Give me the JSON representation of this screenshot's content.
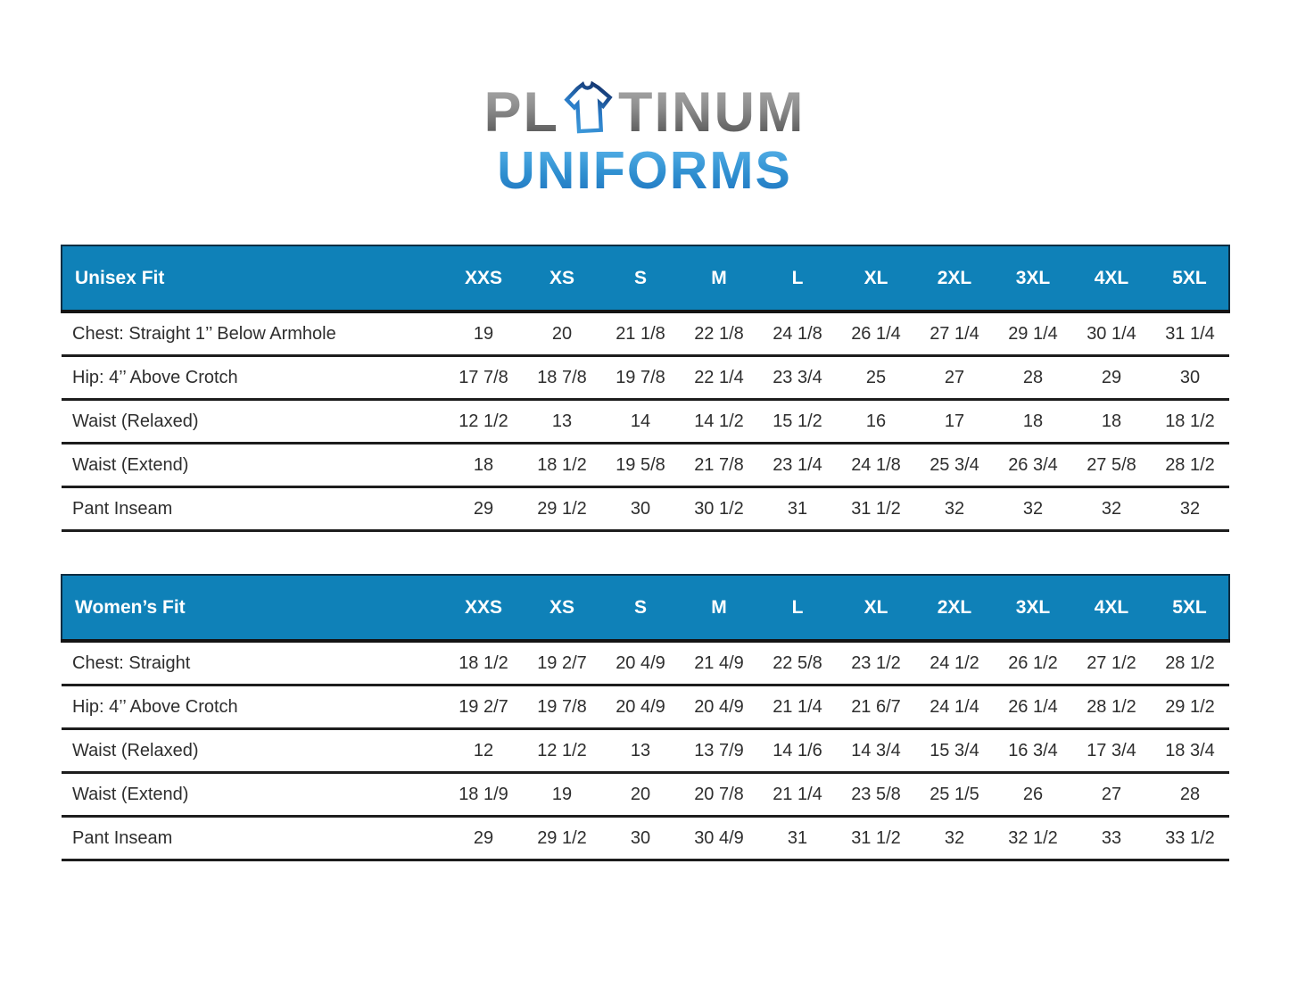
{
  "logo": {
    "part1": "PL",
    "part2": "TINUM",
    "line2": "UNIFORMS",
    "tshirt_icon": "tshirt-outline"
  },
  "colors": {
    "header_blue": "#0f81b8",
    "row_line_dark": "#1d1d1d",
    "text_dark": "#2e2e2e",
    "logo_gray_top": "#a8a8a8",
    "logo_gray_bottom": "#4e4e4e",
    "logo_blue_top": "#58b3e9",
    "logo_blue_bottom": "#1f74c0",
    "tshirt_navy": "#14346e",
    "tshirt_blue": "#3b97d8"
  },
  "tables": [
    {
      "title": "Unisex Fit",
      "sizes": [
        "XXS",
        "XS",
        "S",
        "M",
        "L",
        "XL",
        "2XL",
        "3XL",
        "4XL",
        "5XL"
      ],
      "rows": [
        {
          "label": "Chest: Straight 1’’ Below Armhole",
          "values": [
            "19",
            "20",
            "21 1/8",
            "22 1/8",
            "24 1/8",
            "26 1/4",
            "27 1/4",
            "29 1/4",
            "30 1/4",
            "31 1/4"
          ]
        },
        {
          "label": "Hip: 4’’ Above Crotch",
          "values": [
            "17 7/8",
            "18 7/8",
            "19 7/8",
            "22 1/4",
            "23 3/4",
            "25",
            "27",
            "28",
            "29",
            "30"
          ]
        },
        {
          "label": "Waist (Relaxed)",
          "values": [
            "12 1/2",
            "13",
            "14",
            "14 1/2",
            "15 1/2",
            "16",
            "17",
            "18",
            "18",
            "18 1/2"
          ]
        },
        {
          "label": "Waist (Extend)",
          "values": [
            "18",
            "18 1/2",
            "19 5/8",
            "21 7/8",
            "23 1/4",
            "24 1/8",
            "25 3/4",
            "26 3/4",
            "27 5/8",
            "28 1/2"
          ]
        },
        {
          "label": "Pant Inseam",
          "values": [
            "29",
            "29 1/2",
            "30",
            "30 1/2",
            "31",
            "31 1/2",
            "32",
            "32",
            "32",
            "32"
          ]
        }
      ]
    },
    {
      "title": "Women’s Fit",
      "sizes": [
        "XXS",
        "XS",
        "S",
        "M",
        "L",
        "XL",
        "2XL",
        "3XL",
        "4XL",
        "5XL"
      ],
      "rows": [
        {
          "label": "Chest: Straight",
          "values": [
            "18 1/2",
            "19 2/7",
            "20 4/9",
            "21 4/9",
            "22 5/8",
            "23 1/2",
            "24 1/2",
            "26 1/2",
            "27 1/2",
            "28 1/2"
          ]
        },
        {
          "label": "Hip: 4’’ Above Crotch",
          "values": [
            "19 2/7",
            "19 7/8",
            "20 4/9",
            "20 4/9",
            "21 1/4",
            "21 6/7",
            "24 1/4",
            "26 1/4",
            "28 1/2",
            "29 1/2"
          ]
        },
        {
          "label": "Waist (Relaxed)",
          "values": [
            "12",
            "12 1/2",
            "13",
            "13 7/9",
            "14 1/6",
            "14 3/4",
            "15 3/4",
            "16 3/4",
            "17 3/4",
            "18 3/4"
          ]
        },
        {
          "label": "Waist (Extend)",
          "values": [
            "18 1/9",
            "19",
            "20",
            "20 7/8",
            "21 1/4",
            "23 5/8",
            "25 1/5",
            "26",
            "27",
            "28"
          ]
        },
        {
          "label": "Pant Inseam",
          "values": [
            "29",
            "29 1/2",
            "30",
            "30 4/9",
            "31",
            "31 1/2",
            "32",
            "32 1/2",
            "33",
            "33 1/2"
          ]
        }
      ]
    }
  ]
}
